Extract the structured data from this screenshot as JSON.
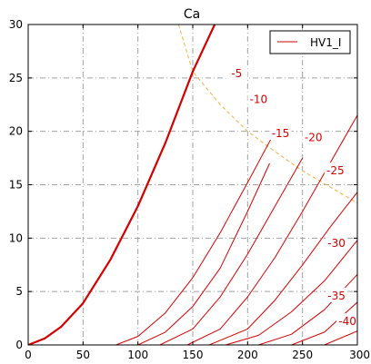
{
  "chart_data": {
    "type": "line",
    "title": "Ca",
    "xlabel": "",
    "ylabel": "",
    "xlim": [
      0,
      300
    ],
    "ylim": [
      0,
      30
    ],
    "xticks": [
      0,
      50,
      100,
      150,
      200,
      250,
      300
    ],
    "yticks": [
      0,
      5,
      10,
      15,
      20,
      25,
      30
    ],
    "grid": true,
    "legend": {
      "placement": "top-right",
      "entries": [
        "HV1_I"
      ]
    },
    "colors": {
      "curve": "#d40000",
      "envelope": "#f0b040",
      "grid": "#a0a0a0"
    },
    "series": [
      {
        "name": "HV1_I",
        "bias": "0",
        "width": "thick",
        "x": [
          0,
          15,
          30,
          50,
          75,
          100,
          125,
          150,
          170
        ],
        "y": [
          0,
          0.6,
          1.7,
          3.9,
          8.0,
          13.0,
          18.9,
          25.6,
          30
        ]
      },
      {
        "bias": "-5",
        "x": [
          0,
          80,
          100,
          125,
          150,
          175,
          200,
          225
        ],
        "y": [
          0,
          0,
          0.8,
          3.0,
          6.3,
          10.5,
          15.2,
          20.0
        ]
      },
      {
        "bias": "-10",
        "x": [
          0,
          100,
          125,
          150,
          175,
          200,
          220
        ],
        "y": [
          0,
          0,
          1.2,
          3.6,
          7.2,
          12.5,
          17.0
        ]
      },
      {
        "bias": "-15",
        "x": [
          0,
          120,
          150,
          175,
          200,
          225,
          250
        ],
        "y": [
          0,
          0,
          1.5,
          4.5,
          8.5,
          13.0,
          17.5
        ]
      },
      {
        "bias": "-20",
        "x": [
          0,
          145,
          175,
          200,
          225,
          250,
          275,
          300
        ],
        "y": [
          0,
          0,
          1.5,
          4.5,
          8.2,
          12.5,
          17.0,
          21.5
        ]
      },
      {
        "bias": "-25",
        "x": [
          0,
          165,
          200,
          225,
          250,
          275,
          300
        ],
        "y": [
          0,
          0,
          1.5,
          4.2,
          7.5,
          11.0,
          14.3
        ]
      },
      {
        "bias": "-30",
        "x": [
          0,
          180,
          210,
          240,
          270,
          300
        ],
        "y": [
          0,
          0,
          0.9,
          3.1,
          6.0,
          9.8
        ]
      },
      {
        "bias": "-35",
        "x": [
          0,
          210,
          240,
          270,
          300
        ],
        "y": [
          0,
          0,
          1.0,
          3.3,
          6.6
        ]
      },
      {
        "bias": "-40",
        "x": [
          0,
          240,
          270,
          300
        ],
        "y": [
          0,
          0,
          1.2,
          4.0
        ]
      },
      {
        "bias": "-45",
        "x": [
          0,
          270,
          300
        ],
        "y": [
          0,
          0,
          1.3
        ]
      }
    ],
    "envelope": {
      "x": [
        137,
        150,
        175,
        200,
        225,
        250,
        275,
        300
      ],
      "y": [
        30,
        25.6,
        22.5,
        20.0,
        18.1,
        16.3,
        14.8,
        13.3
      ]
    },
    "annotations": [
      {
        "text": "-5",
        "x": 190,
        "y": 25.4
      },
      {
        "text": "-10",
        "x": 210,
        "y": 23.0
      },
      {
        "text": "-15",
        "x": 230,
        "y": 19.8
      },
      {
        "text": "-20",
        "x": 260,
        "y": 19.4
      },
      {
        "text": "-25",
        "x": 280,
        "y": 16.3
      },
      {
        "text": "-30",
        "x": 281,
        "y": 9.5
      },
      {
        "text": "-35",
        "x": 281,
        "y": 4.6
      },
      {
        "text": "-40",
        "x": 291,
        "y": 2.2
      }
    ]
  }
}
